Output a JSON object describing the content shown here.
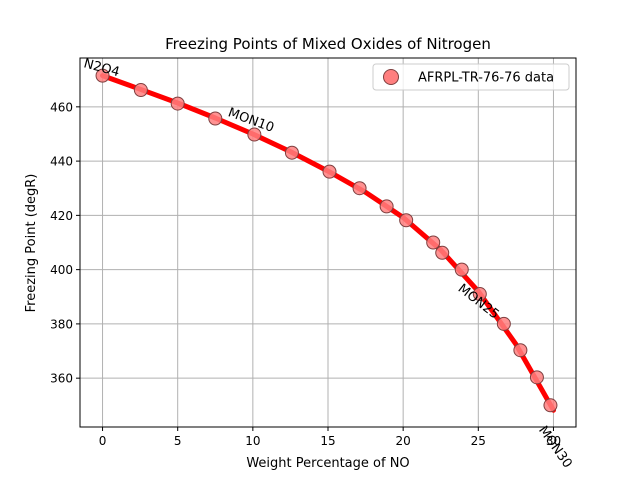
{
  "chart_data": {
    "type": "scatter",
    "title": "Freezing Points of Mixed Oxides of Nitrogen",
    "xlabel": "Weight Percentage of NO",
    "ylabel": "Freezing Point (degR)",
    "xlim": [
      -1.5,
      31.5
    ],
    "ylim": [
      342,
      478
    ],
    "grid": true,
    "x_ticks": [
      0,
      5,
      10,
      15,
      20,
      25,
      30
    ],
    "y_ticks": [
      360,
      380,
      400,
      420,
      440,
      460
    ],
    "legend": {
      "placement": "top-right",
      "entries": [
        "AFRPL-TR-76-76 data"
      ]
    },
    "colors": {
      "curve": "#ff0000",
      "marker_fill": "#ff7f7f",
      "marker_edge": "#7f3f3f",
      "grid": "#b0b0b0"
    },
    "series": [
      {
        "name": "AFRPL-TR-76-76 data",
        "kind": "markers",
        "x": [
          0,
          2.55,
          5.0,
          7.5,
          10.1,
          12.6,
          15.1,
          17.1,
          18.9,
          20.2,
          22.0,
          22.6,
          23.9,
          25.1,
          26.7,
          27.8,
          28.9,
          29.8
        ],
        "y": [
          471.5,
          466.2,
          461.2,
          455.7,
          449.8,
          443.1,
          436.1,
          430.0,
          423.3,
          418.2,
          410.0,
          406.2,
          400.0,
          391.0,
          380.0,
          370.3,
          360.3,
          350.0
        ]
      },
      {
        "kind": "curve",
        "x": [
          0,
          2.5,
          5.0,
          7.5,
          10.0,
          12.5,
          15.0,
          17.5,
          20.0,
          22.5,
          25.0,
          27.5,
          30.0
        ],
        "y": [
          471.5,
          466.5,
          461.4,
          455.9,
          450.0,
          443.5,
          436.3,
          428.5,
          419.2,
          407.3,
          392.0,
          372.5,
          348.2
        ]
      }
    ],
    "annotations": [
      {
        "text": "N2O4",
        "x": -1.3,
        "y": 474.7,
        "angle": -15
      },
      {
        "text": "MON10",
        "x": 8.3,
        "y": 456.7,
        "angle": -20
      },
      {
        "text": "MON25",
        "x": 23.6,
        "y": 392.5,
        "angle": -38
      },
      {
        "text": "MON30",
        "x": 29.0,
        "y": 341.0,
        "angle": -55
      }
    ]
  }
}
